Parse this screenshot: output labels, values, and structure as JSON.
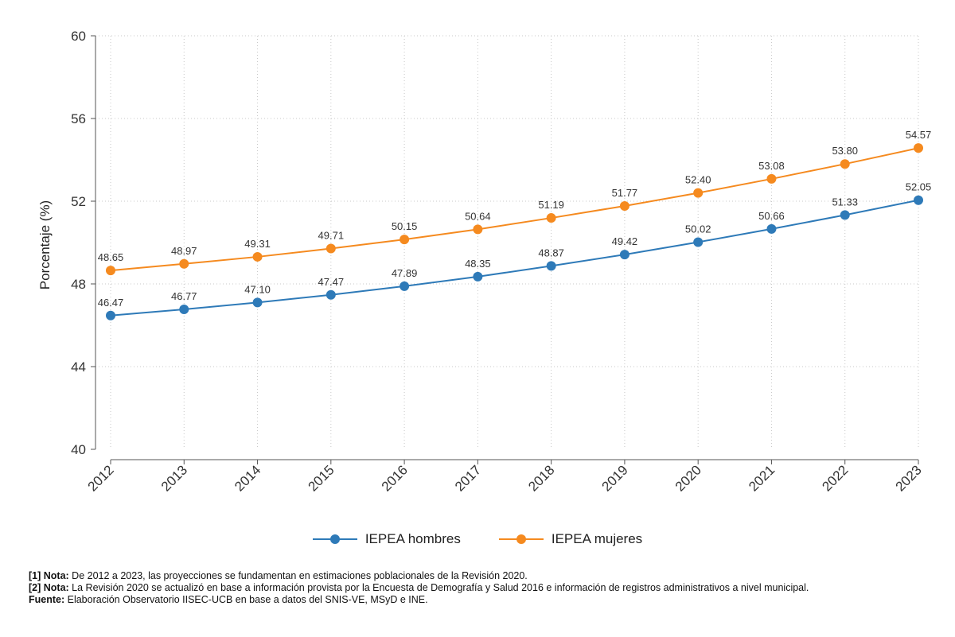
{
  "chart_data": {
    "type": "line",
    "title": "",
    "xlabel": "",
    "ylabel": "Porcentaje (%)",
    "ylim": [
      40,
      60
    ],
    "yticks": [
      40,
      44,
      48,
      52,
      56,
      60
    ],
    "categories": [
      "2012",
      "2013",
      "2014",
      "2015",
      "2016",
      "2017",
      "2018",
      "2019",
      "2020",
      "2021",
      "2022",
      "2023"
    ],
    "grid": true,
    "legend_position": "bottom",
    "series": [
      {
        "name": "IEPEA hombres",
        "color": "#2e7ab8",
        "values": [
          46.47,
          46.77,
          47.1,
          47.47,
          47.89,
          48.35,
          48.87,
          49.42,
          50.02,
          50.66,
          51.33,
          52.05
        ],
        "labels": [
          "46.47",
          "46.77",
          "47.10",
          "47.47",
          "47.89",
          "48.35",
          "48.87",
          "49.42",
          "50.02",
          "50.66",
          "51.33",
          "52.05"
        ]
      },
      {
        "name": "IEPEA mujeres",
        "color": "#f58a1f",
        "values": [
          48.65,
          48.97,
          49.31,
          49.71,
          50.15,
          50.64,
          51.19,
          51.77,
          52.4,
          53.08,
          53.8,
          54.57
        ],
        "labels": [
          "48.65",
          "48.97",
          "49.31",
          "49.71",
          "50.15",
          "50.64",
          "51.19",
          "51.77",
          "52.40",
          "53.08",
          "53.80",
          "54.57"
        ]
      }
    ]
  },
  "notes": [
    {
      "label": "[1] Nota:",
      "text": " De 2012 a 2023, las proyecciones se fundamentan en estimaciones poblacionales de la Revisión 2020."
    },
    {
      "label": "[2] Nota:",
      "text": " La Revisión 2020 se actualizó en base a información provista por la Encuesta de Demografía y Salud 2016 e información de registros administrativos a nivel municipal."
    },
    {
      "label": "Fuente:",
      "text": " Elaboración Observatorio IISEC-UCB en base a datos del SNIS-VE, MSyD e INE."
    }
  ]
}
